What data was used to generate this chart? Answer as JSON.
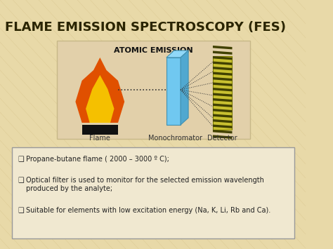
{
  "background_color": "#e8d9a8",
  "title": "FLAME EMISSION SPECTROSCOPY (FES)",
  "title_color": "#2a2400",
  "title_fontsize": 13,
  "title_weight": "bold",
  "diagram_box_color": "#e2d0aa",
  "diagram_box_edge": "#c8b888",
  "diagram_title": "ATOMIC EMISSION",
  "diagram_title_fontsize": 8,
  "diagram_title_weight": "bold",
  "info_box_color": "#f0e8d0",
  "info_box_edge": "#999999",
  "bullet_fontsize": 7,
  "label_flame": "Flame",
  "label_mono": "Monochromator",
  "label_detector": "Detector",
  "flame_orange": "#e05000",
  "flame_yellow": "#f5c000",
  "mono_color": "#70c8f0",
  "mono_edge": "#4090b0",
  "det_color": "#c8c030",
  "det_stripe": "#404000",
  "det_edge": "#808000",
  "beam_color": "#333333",
  "base_color": "#111111"
}
